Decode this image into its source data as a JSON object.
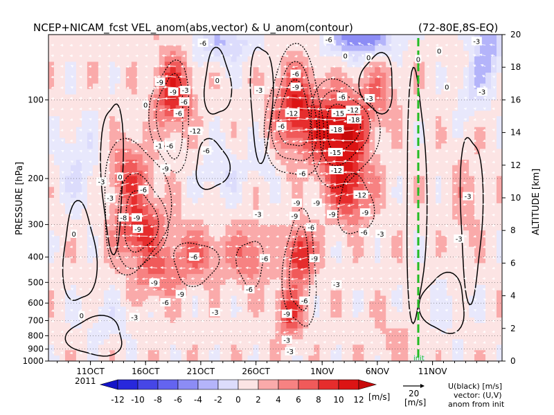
{
  "chart_data": {
    "type": "heatmap",
    "title": "NCEP+NICAM_fcst VEL_anom(abs,vector) & U_anom(contour)",
    "region": "(72-80E,8S-EQ)",
    "ylabel_left": "PRESSURE [hPa]",
    "ylabel_right": "ALTITUDE [km]",
    "pressure_ticks": [
      100,
      200,
      300,
      400,
      500,
      600,
      700,
      800,
      900,
      1000
    ],
    "altitude_ticks": [
      0,
      2,
      4,
      6,
      8,
      10,
      12,
      14,
      16,
      18,
      20
    ],
    "x_ticks": [
      "11OCT",
      "16OCT",
      "21OCT",
      "26OCT",
      "1NOV",
      "6NOV",
      "11NOV"
    ],
    "year_label": "2011",
    "init_label": "init",
    "colorbar": {
      "ticks": [
        -12,
        -10,
        -8,
        -6,
        -4,
        -2,
        0,
        2,
        4,
        6,
        8,
        10,
        12
      ],
      "unit": "[m/s]"
    },
    "vector_key": {
      "value": "20",
      "unit": "[m/s]"
    },
    "legend_lines": [
      "U(black) [m/s]",
      "vector: (U,V)",
      "anom from init"
    ],
    "contour_labels": [
      {
        "text": "-6",
        "day": 18.0,
        "alt": 15.2
      },
      {
        "text": "-9",
        "day": 16.3,
        "alt": 17.1
      },
      {
        "text": "-9",
        "day": 17.5,
        "alt": 16.5
      },
      {
        "text": "-12",
        "day": 19.5,
        "alt": 14.1
      },
      {
        "text": "-1",
        "day": 16.2,
        "alt": 13.2
      },
      {
        "text": "-6",
        "day": 17.2,
        "alt": 13.2
      },
      {
        "text": "-9",
        "day": 16.8,
        "alt": 11.8
      },
      {
        "text": "-6",
        "day": 18.5,
        "alt": 15.9
      },
      {
        "text": "-3",
        "day": 18.6,
        "alt": 16.6
      },
      {
        "text": "-6",
        "day": 20.5,
        "alt": 12.9
      },
      {
        "text": "-6",
        "day": 28.6,
        "alt": 17.6
      },
      {
        "text": "-9",
        "day": 28.6,
        "alt": 16.8
      },
      {
        "text": "-12",
        "day": 28.3,
        "alt": 15.2
      },
      {
        "text": "-6",
        "day": 20.2,
        "alt": 19.5
      },
      {
        "text": "-6",
        "day": 31.6,
        "alt": 19.7
      },
      {
        "text": "-6",
        "day": 27.3,
        "alt": 14.4
      },
      {
        "text": "-3",
        "day": 25.3,
        "alt": 16.6
      },
      {
        "text": "-6",
        "day": 32.8,
        "alt": 16.2
      },
      {
        "text": "-15",
        "day": 32.5,
        "alt": 15.2
      },
      {
        "text": "-12",
        "day": 33.8,
        "alt": 15.4
      },
      {
        "text": "-18",
        "day": 33.9,
        "alt": 14.8
      },
      {
        "text": "-18",
        "day": 32.3,
        "alt": 14.2
      },
      {
        "text": "-3",
        "day": 35.3,
        "alt": 16.1
      },
      {
        "text": "-15",
        "day": 32.2,
        "alt": 12.8
      },
      {
        "text": "-12",
        "day": 32.3,
        "alt": 11.7
      },
      {
        "text": "-12",
        "day": 34.5,
        "alt": 10.2
      },
      {
        "text": "-6",
        "day": 29.2,
        "alt": 11.5
      },
      {
        "text": "-6",
        "day": 14.8,
        "alt": 10.5
      },
      {
        "text": "-3",
        "day": 11.8,
        "alt": 10.0
      },
      {
        "text": "-8",
        "day": 13.0,
        "alt": 8.8
      },
      {
        "text": "-9",
        "day": 14.2,
        "alt": 8.8
      },
      {
        "text": "-9",
        "day": 14.3,
        "alt": 8.1
      },
      {
        "text": "-3",
        "day": 11.0,
        "alt": 11.0
      },
      {
        "text": "-3",
        "day": 25.2,
        "alt": 9.0
      },
      {
        "text": "-9",
        "day": 28.7,
        "alt": 9.7
      },
      {
        "text": "-9",
        "day": 30.5,
        "alt": 9.7
      },
      {
        "text": "-9",
        "day": 28.5,
        "alt": 8.9
      },
      {
        "text": "-6",
        "day": 30.0,
        "alt": 8.2
      },
      {
        "text": "-9",
        "day": 31.9,
        "alt": 9.0
      },
      {
        "text": "-9",
        "day": 34.9,
        "alt": 9.1
      },
      {
        "text": "-6",
        "day": 34.8,
        "alt": 7.9
      },
      {
        "text": "-3",
        "day": 36.3,
        "alt": 7.8
      },
      {
        "text": "-6",
        "day": 19.4,
        "alt": 6.4
      },
      {
        "text": "-6",
        "day": 25.8,
        "alt": 6.3
      },
      {
        "text": "-9",
        "day": 30.3,
        "alt": 6.3
      },
      {
        "text": "-9",
        "day": 15.8,
        "alt": 4.8
      },
      {
        "text": "-9",
        "day": 18.2,
        "alt": 4.1
      },
      {
        "text": "-6",
        "day": 24.4,
        "alt": 4.4
      },
      {
        "text": "-3",
        "day": 32.3,
        "alt": 4.7
      },
      {
        "text": "-6",
        "day": 29.4,
        "alt": 3.7
      },
      {
        "text": "-6",
        "day": 16.8,
        "alt": 3.6
      },
      {
        "text": "-9",
        "day": 27.8,
        "alt": 2.9
      },
      {
        "text": "-3",
        "day": 14.0,
        "alt": 2.7
      },
      {
        "text": "-3",
        "day": 21.3,
        "alt": 3.0
      },
      {
        "text": "-3",
        "day": 28.1,
        "alt": 0.6
      },
      {
        "text": "-3",
        "day": 27.8,
        "alt": 1.3
      },
      {
        "text": "-3",
        "day": 44.2,
        "alt": 10.1
      },
      {
        "text": "-3",
        "day": 43.4,
        "alt": 7.5
      },
      {
        "text": "-3",
        "day": 45.5,
        "alt": 16.5
      },
      {
        "text": "-3",
        "day": 45.0,
        "alt": 19.6
      },
      {
        "text": "0",
        "day": 12.7,
        "alt": 11.3
      },
      {
        "text": "0",
        "day": 8.5,
        "alt": 7.8
      },
      {
        "text": "0",
        "day": 9.2,
        "alt": 2.8
      },
      {
        "text": "0",
        "day": 15.0,
        "alt": 15.7
      },
      {
        "text": "0",
        "day": 21.5,
        "alt": 17.2
      },
      {
        "text": "0",
        "day": 33.1,
        "alt": 18.7
      },
      {
        "text": "0",
        "day": 35.2,
        "alt": 18.6
      },
      {
        "text": "0",
        "day": 39.7,
        "alt": 18.5
      },
      {
        "text": "0",
        "day": 41.6,
        "alt": 19.0
      },
      {
        "text": "0",
        "day": 42.3,
        "alt": 16.8
      }
    ]
  }
}
